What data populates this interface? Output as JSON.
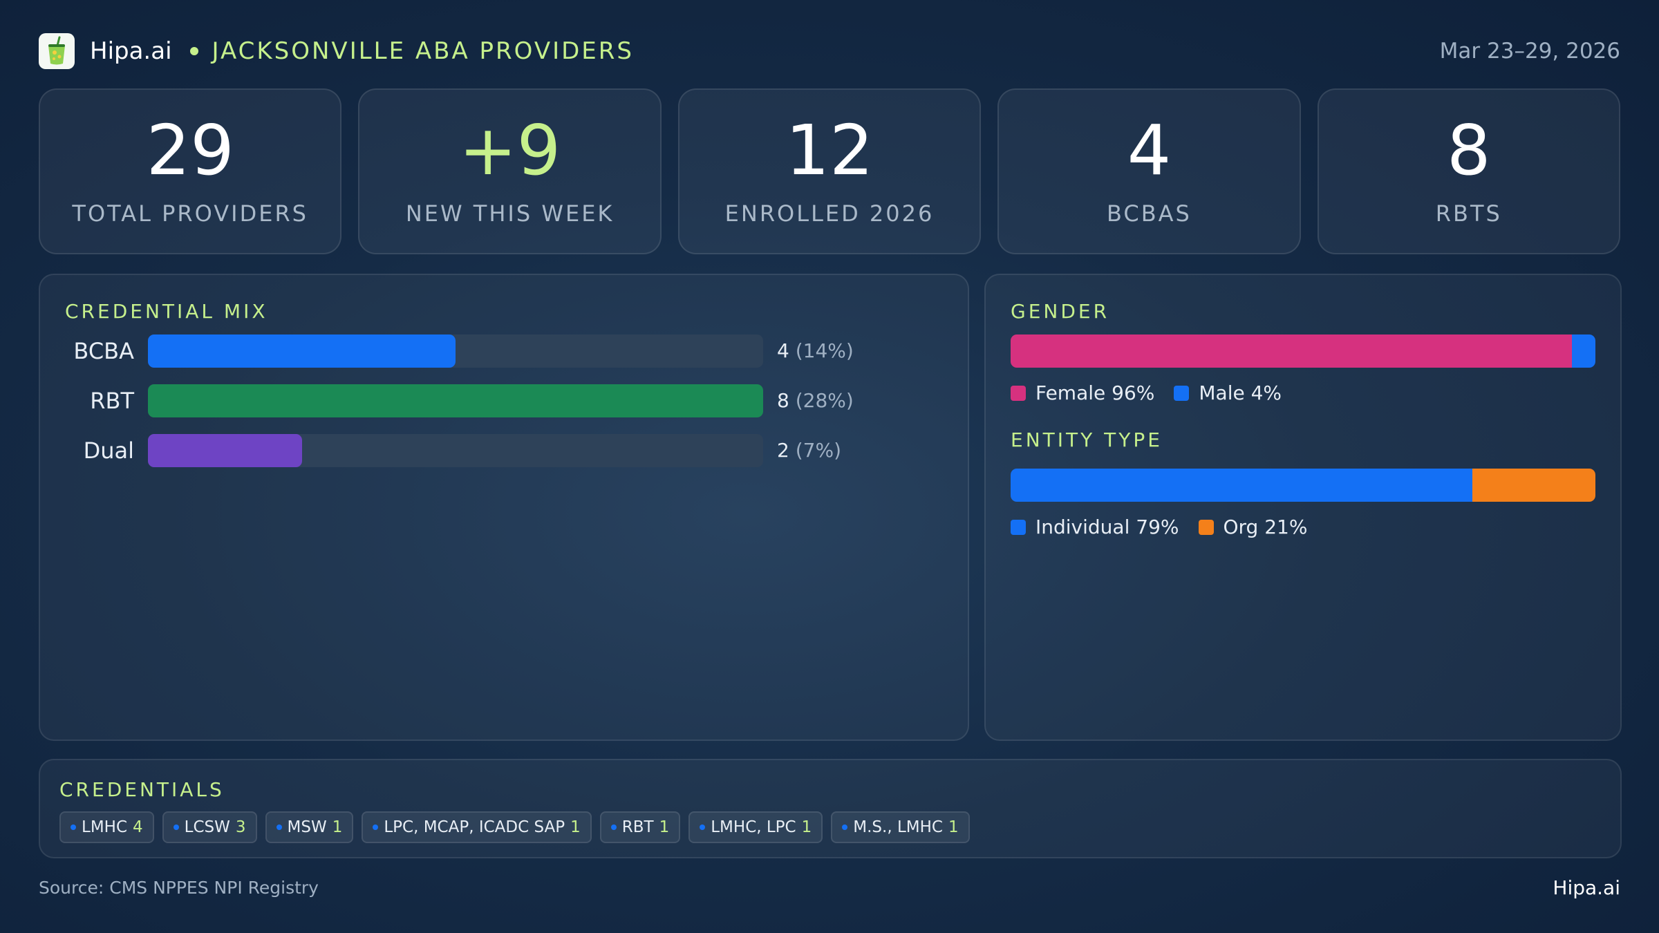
{
  "colors": {
    "accent": "#c6f08c",
    "blue": "#1470f5",
    "green": "#1b8a55",
    "purple": "#6e44c4",
    "pink": "#d6317f",
    "orange": "#f4801a"
  },
  "header": {
    "brand": "Hipa.ai",
    "logo_icon": "drink-cup-icon",
    "title": "JACKSONVILLE ABA PROVIDERS",
    "date_range": "Mar 23–29, 2026"
  },
  "stats": [
    {
      "value": "29",
      "label": "TOTAL PROVIDERS",
      "color": "#ffffff"
    },
    {
      "value": "+9",
      "label": "NEW THIS WEEK",
      "color": "#c6f08c"
    },
    {
      "value": "12",
      "label": "ENROLLED 2026",
      "color": "#ffffff"
    },
    {
      "value": "4",
      "label": "BCBAS",
      "color": "#ffffff"
    },
    {
      "value": "8",
      "label": "RBTS",
      "color": "#ffffff"
    }
  ],
  "chart_data": [
    {
      "type": "bar",
      "title": "CREDENTIAL MIX",
      "orientation": "horizontal",
      "categories": [
        "BCBA",
        "RBT",
        "Dual"
      ],
      "values": [
        4,
        8,
        2
      ],
      "value_labels": [
        "4",
        "8",
        "2"
      ],
      "percent_labels": [
        "(14%)",
        "(28%)",
        "(7%)"
      ],
      "colors": [
        "#1470f5",
        "#1b8a55",
        "#6e44c4"
      ],
      "xlim": [
        0,
        8
      ]
    },
    {
      "type": "bar",
      "stacked": true,
      "title": "GENDER",
      "series": [
        {
          "name": "Female",
          "value": 96,
          "label": "Female 96%",
          "color": "#d6317f"
        },
        {
          "name": "Male",
          "value": 4,
          "label": "Male 4%",
          "color": "#1470f5"
        }
      ]
    },
    {
      "type": "bar",
      "stacked": true,
      "title": "ENTITY TYPE",
      "series": [
        {
          "name": "Individual",
          "value": 79,
          "label": "Individual 79%",
          "color": "#1470f5"
        },
        {
          "name": "Org",
          "value": 21,
          "label": "Org 21%",
          "color": "#f4801a"
        }
      ]
    }
  ],
  "credentials": {
    "title": "CREDENTIALS",
    "items": [
      {
        "name": "LMHC",
        "count": "4"
      },
      {
        "name": "LCSW",
        "count": "3"
      },
      {
        "name": "MSW",
        "count": "1"
      },
      {
        "name": "LPC, MCAP, ICADC SAP",
        "count": "1"
      },
      {
        "name": "RBT",
        "count": "1"
      },
      {
        "name": "LMHC, LPC",
        "count": "1"
      },
      {
        "name": "M.S., LMHC",
        "count": "1"
      }
    ]
  },
  "footer": {
    "source": "Source: CMS NPPES NPI Registry",
    "brand": "Hipa.ai"
  }
}
